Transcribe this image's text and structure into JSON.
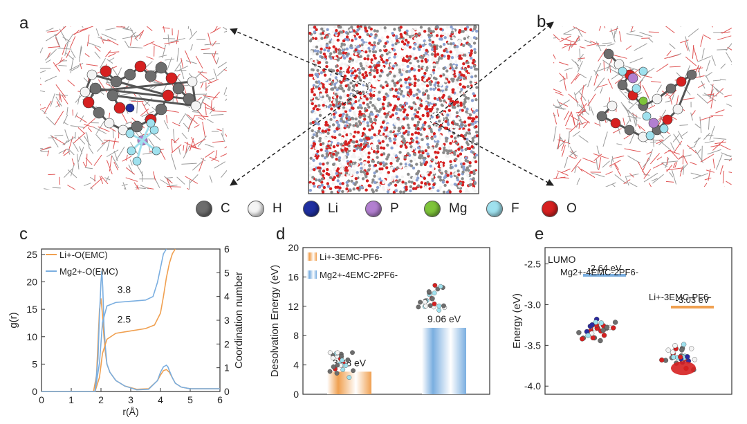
{
  "panels": {
    "a": "a",
    "b": "b",
    "c": "c",
    "d": "d",
    "e": "e"
  },
  "legend": [
    {
      "label": "C",
      "color": "#6d6d6d"
    },
    {
      "label": "H",
      "color": "#f4f4f4"
    },
    {
      "label": "Li",
      "color": "#1f2fa0"
    },
    {
      "label": "P",
      "color": "#b27fd0"
    },
    {
      "label": "Mg",
      "color": "#7ec43a"
    },
    {
      "label": "F",
      "color": "#9fe1ee"
    },
    {
      "label": "O",
      "color": "#d62020"
    }
  ],
  "chart_data": [
    {
      "id": "c",
      "type": "line",
      "xlabel": "r(Å)",
      "ylabel": "g(r)",
      "y2label": "Coordination number",
      "xlim": [
        0,
        6
      ],
      "ylim": [
        0,
        26
      ],
      "y2lim": [
        0,
        6
      ],
      "xticks": [
        0,
        1,
        2,
        3,
        4,
        5,
        6
      ],
      "yticks": [
        0,
        5,
        10,
        15,
        20,
        25
      ],
      "y2ticks": [
        0,
        1,
        2,
        3,
        4,
        5,
        6
      ],
      "legend": [
        {
          "name": "Li+-O(EMC)",
          "color": "#f0a050"
        },
        {
          "name": "Mg2+-O(EMC)",
          "color": "#7aaee0"
        }
      ],
      "annotations": [
        "3.8",
        "2.5"
      ],
      "series": [
        {
          "name": "Li+-O(EMC) g(r)",
          "color": "#f0a050",
          "axis": "left",
          "x": [
            0,
            1.75,
            1.85,
            1.9,
            1.95,
            2.0,
            2.05,
            2.1,
            2.15,
            2.2,
            2.3,
            2.5,
            2.8,
            3.2,
            3.6,
            3.9,
            4.0,
            4.1,
            4.2,
            4.3,
            4.4,
            4.5,
            4.7,
            5.0,
            6.0
          ],
          "y": [
            0,
            0,
            3,
            9,
            15,
            17,
            14,
            10,
            7,
            5,
            3.5,
            2,
            1,
            0.4,
            0.5,
            2,
            3,
            3.8,
            4,
            3.5,
            2.5,
            1.5,
            0.8,
            0.5,
            0.5
          ]
        },
        {
          "name": "Mg2+-O(EMC) g(r)",
          "color": "#7aaee0",
          "axis": "left",
          "x": [
            0,
            1.8,
            1.9,
            1.95,
            2.0,
            2.03,
            2.06,
            2.1,
            2.15,
            2.2,
            2.3,
            2.5,
            2.8,
            3.2,
            3.6,
            3.9,
            4.0,
            4.1,
            4.2,
            4.25,
            4.3,
            4.4,
            4.5,
            4.7,
            5.0,
            6.0
          ],
          "y": [
            0,
            0,
            6,
            14,
            20,
            22,
            19,
            12,
            8,
            5,
            3.5,
            2,
            1,
            0.3,
            0.4,
            2,
            3.5,
            4.5,
            4.8,
            4.5,
            3.8,
            2.5,
            1.5,
            0.8,
            0.5,
            0.5
          ]
        },
        {
          "name": "Li+-O(EMC) CN",
          "color": "#f0a050",
          "axis": "right",
          "x": [
            0,
            1.8,
            1.95,
            2.05,
            2.2,
            2.5,
            3.0,
            3.5,
            3.8,
            4.0,
            4.1,
            4.2,
            4.3,
            4.4,
            4.5
          ],
          "y": [
            0,
            0,
            0.6,
            1.6,
            2.2,
            2.45,
            2.55,
            2.65,
            2.8,
            3.3,
            4.0,
            4.8,
            5.4,
            5.8,
            6.0
          ]
        },
        {
          "name": "Mg2+-O(EMC) CN",
          "color": "#7aaee0",
          "axis": "right",
          "x": [
            0,
            1.8,
            1.95,
            2.05,
            2.2,
            2.5,
            3.0,
            3.5,
            3.75,
            3.9,
            4.0,
            4.1,
            4.2
          ],
          "y": [
            0,
            0,
            1.2,
            2.9,
            3.6,
            3.75,
            3.8,
            3.85,
            4.0,
            4.6,
            5.2,
            5.8,
            6.0
          ]
        }
      ]
    },
    {
      "id": "d",
      "type": "bar",
      "ylabel": "Desolvation Energy (eV)",
      "ylim": [
        0,
        20
      ],
      "yticks": [
        0,
        4,
        8,
        12,
        16,
        20
      ],
      "categories": [
        "Li+-3EMC-PF6-",
        "Mg2+-4EMC-2PF6-"
      ],
      "values": [
        3.08,
        9.06
      ],
      "value_labels": [
        "3.08 eV",
        "9.06 eV"
      ],
      "colors": [
        "#f0a050",
        "#7aaee0"
      ]
    },
    {
      "id": "e",
      "type": "scatter",
      "title_inner": "LUMO",
      "ylabel": "Energy (eV)",
      "ylim": [
        -4.1,
        -2.3
      ],
      "yticks": [
        -2.5,
        -3.0,
        -3.5,
        -4.0
      ],
      "levels": [
        {
          "name": "Mg2+-4EMC-2PF6-",
          "value": -2.64,
          "label": "-2.64 eV",
          "color": "#7aaee0"
        },
        {
          "name": "Li+-3EMC-PF6-",
          "value": -3.03,
          "label": "-3.03 eV",
          "color": "#f0a050"
        }
      ]
    }
  ]
}
